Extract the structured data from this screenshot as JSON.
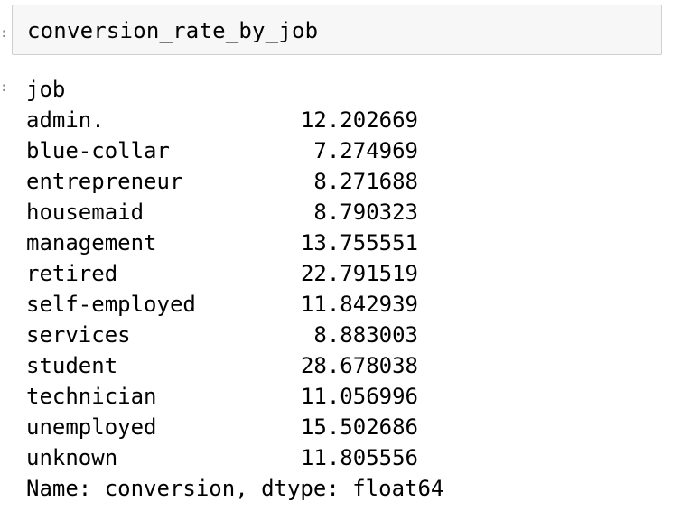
{
  "input_cell": {
    "code": "conversion_rate_by_job"
  },
  "output": {
    "index_name": "job",
    "rows": [
      {
        "label": "admin.",
        "value": "12.202669"
      },
      {
        "label": "blue-collar",
        "value": "7.274969"
      },
      {
        "label": "entrepreneur",
        "value": "8.271688"
      },
      {
        "label": "housemaid",
        "value": "8.790323"
      },
      {
        "label": "management",
        "value": "13.755551"
      },
      {
        "label": "retired",
        "value": "22.791519"
      },
      {
        "label": "self-employed",
        "value": "11.842939"
      },
      {
        "label": "services",
        "value": "8.883003"
      },
      {
        "label": "student",
        "value": "28.678038"
      },
      {
        "label": "technician",
        "value": "11.056996"
      },
      {
        "label": "unemployed",
        "value": "15.502686"
      },
      {
        "label": "unknown",
        "value": "11.805556"
      }
    ],
    "footer": "Name: conversion, dtype: float64"
  }
}
